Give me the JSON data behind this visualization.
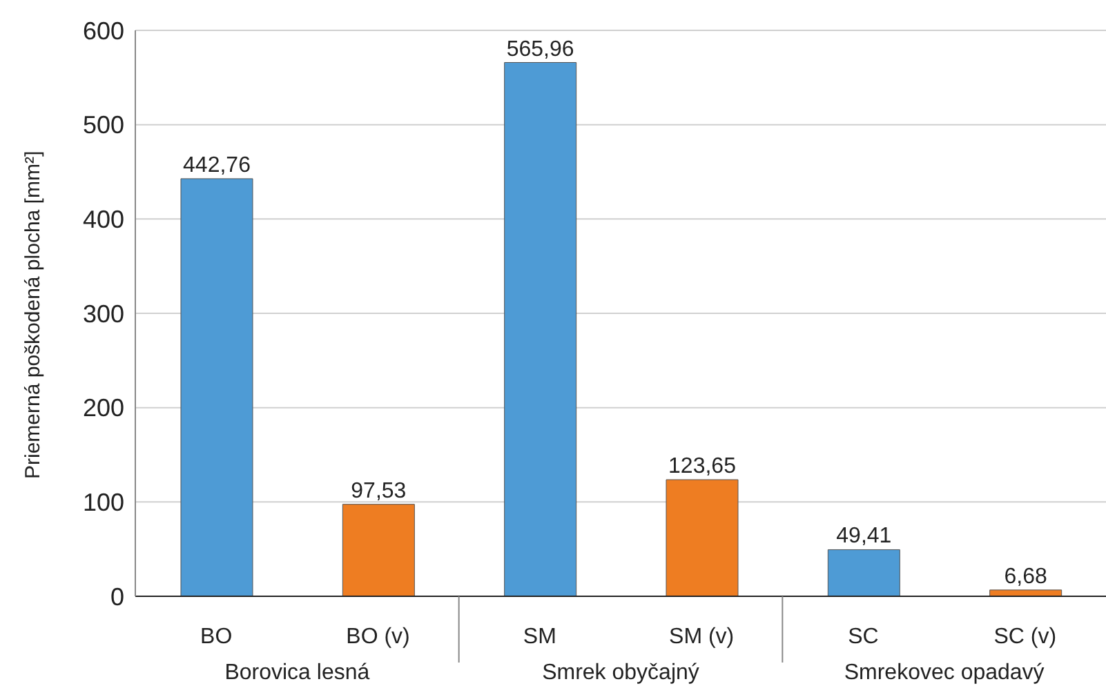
{
  "chart_data": {
    "type": "bar",
    "ylabel": "Priemerná poškodená plocha [mm²]",
    "categories": [
      "BO",
      "BO (v)",
      "SM",
      "SM (v)",
      "SC",
      "SC (v)"
    ],
    "values": [
      442.76,
      97.53,
      565.96,
      123.65,
      49.41,
      6.68
    ],
    "value_labels": [
      "442,76",
      "97,53",
      "565,96",
      "123,65",
      "49,41",
      "6,68"
    ],
    "colors": [
      "#4e9bd5",
      "#ee7d22",
      "#4e9bd5",
      "#ee7d22",
      "#4e9bd5",
      "#ee7d22"
    ],
    "ylim": [
      0,
      600
    ],
    "yticks": [
      0,
      100,
      200,
      300,
      400,
      500,
      600
    ],
    "grid": "y",
    "annotations": [
      "Borovica lesná",
      "Smrek obyčajný",
      "Smrekovec opadavý"
    ]
  }
}
